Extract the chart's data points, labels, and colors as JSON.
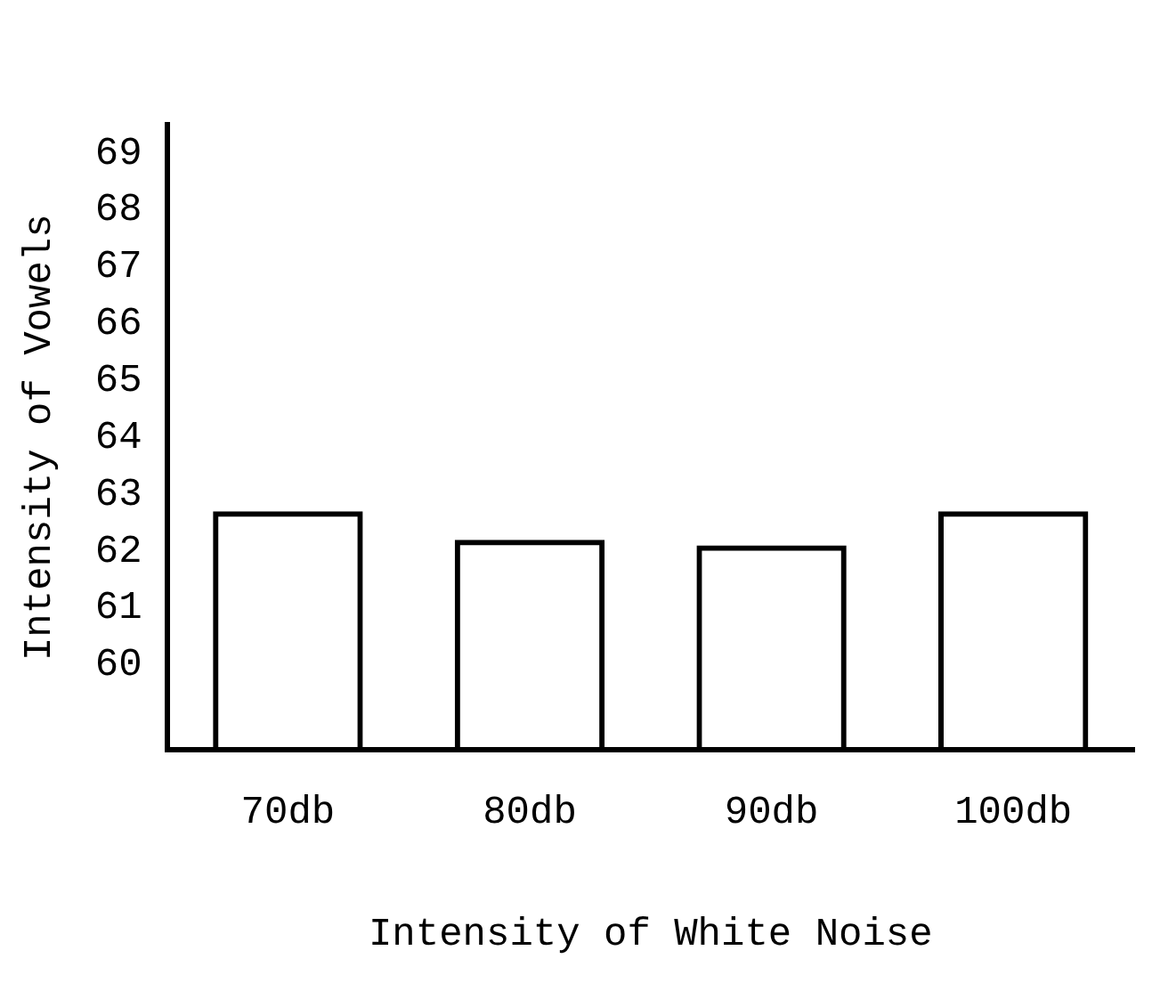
{
  "chart_data": {
    "type": "bar",
    "xlabel": "Intensity of White Noise",
    "ylabel": "Intensity of Vowels",
    "categories": [
      "70db",
      "80db",
      "90db",
      "100db"
    ],
    "values": [
      62.7,
      62.2,
      62.1,
      62.7
    ],
    "color": "#000000",
    "ylim": [
      58.5,
      69.5
    ],
    "yticks": [
      60,
      61,
      62,
      63,
      64,
      65,
      66,
      67,
      68,
      69
    ],
    "grid": false,
    "legend": false
  }
}
